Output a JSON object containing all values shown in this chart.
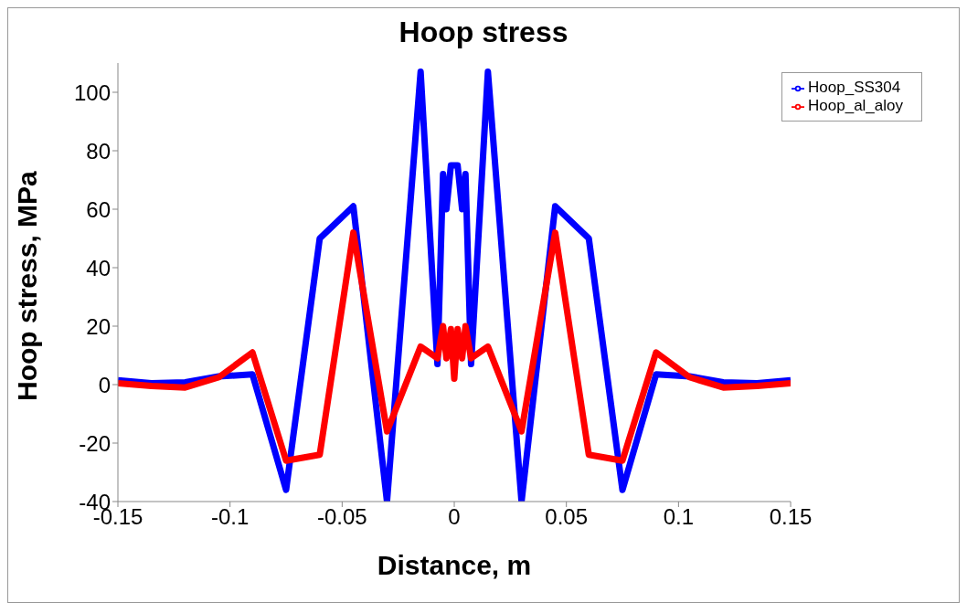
{
  "chart_data": {
    "type": "line",
    "title": "Hoop stress",
    "xlabel": "Distance, m",
    "ylabel": "Hoop stress, MPa",
    "x": [
      -0.15,
      -0.135,
      -0.12,
      -0.105,
      -0.09,
      -0.075,
      -0.06,
      -0.045,
      -0.03,
      -0.015,
      -0.0075,
      -0.005,
      -0.0035,
      -0.0015,
      0,
      0.0015,
      0.0035,
      0.005,
      0.0075,
      0.015,
      0.03,
      0.045,
      0.06,
      0.075,
      0.09,
      0.105,
      0.12,
      0.135,
      0.15
    ],
    "series": [
      {
        "name": "Hoop_SS304",
        "color": "#0000ff",
        "values": [
          1.5,
          0.5,
          0.8,
          2.8,
          3.5,
          -36,
          50,
          61,
          -40,
          107,
          7,
          72,
          60,
          75,
          75,
          75,
          60,
          72,
          7,
          107,
          -40,
          61,
          50,
          -36,
          3.5,
          2.8,
          0.8,
          0.5,
          1.5
        ]
      },
      {
        "name": "Hoop_al_aloy",
        "color": "#ff0000",
        "values": [
          0.5,
          -0.5,
          -1,
          2.5,
          11,
          -26,
          -24,
          52,
          -16,
          13,
          9,
          20,
          9,
          19,
          2,
          19,
          9,
          20,
          9,
          13,
          -16,
          52,
          -24,
          -26,
          11,
          2.5,
          -1,
          -0.5,
          0.5
        ]
      }
    ],
    "xlim": [
      -0.15,
      0.15
    ],
    "xticks": [
      -0.15,
      -0.1,
      -0.05,
      0,
      0.05,
      0.1,
      0.15
    ],
    "ylim": [
      -40,
      110
    ],
    "yticks": [
      -40,
      -20,
      0,
      20,
      40,
      60,
      80,
      100
    ],
    "grid": false,
    "legend": "top right",
    "marker": "none",
    "line_style": "solid"
  }
}
